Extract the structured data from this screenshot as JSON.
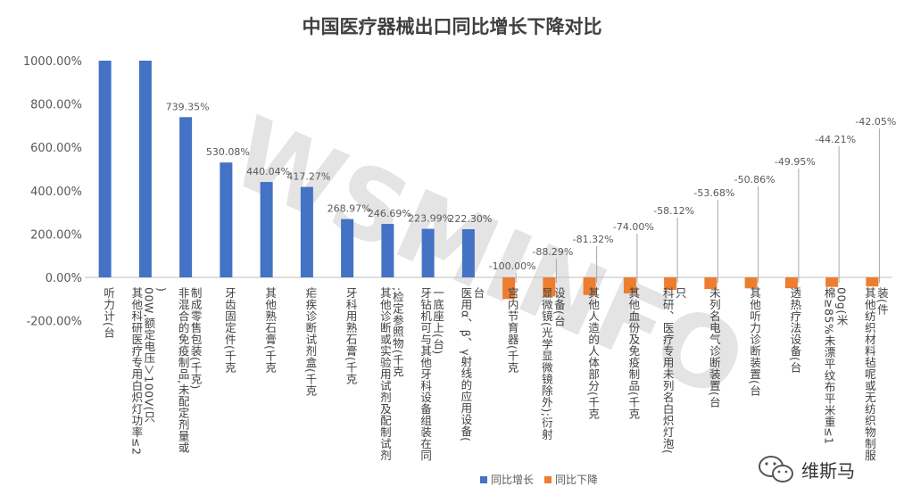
{
  "chart_data": {
    "type": "bar",
    "title": "中国医疗器械出口同比增长下降对比",
    "xlabel": "",
    "ylabel": "",
    "ylim": [
      -200,
      1000
    ],
    "yticks": [
      "1000.00%",
      "800.00%",
      "600.00%",
      "400.00%",
      "200.00%",
      "0.00%",
      "-200.00%"
    ],
    "grid": false,
    "legend_position": "bottom",
    "categories": [
      "听力计(台",
      "其他科研医疗专用白炽灯功率≤200W,额定电压＞100V(只)",
      "非混合的免疫制品,未配定剂量或制成零售包装(千克)",
      "牙齿固定件(千克",
      "其他熟石膏(千克",
      "疟疾诊断试剂盒(千克",
      "牙科用熟石膏(千克",
      "其他诊断或实验用试剂及配制试剂;检定参照物(千克",
      "牙钻机可与其他牙科设备组装在同一底座上(台)",
      "医用α、β、γ射线的应用设备(台",
      "宫内节育器(千克",
      "显微镜(光学显微镜除外);衍射设备(台",
      "其他人造的人体部分(千克",
      "其他血份及免疫制品(千克",
      "科研、医疗专用未列名白炽灯泡(只",
      "未列名电气诊断装置(台",
      "其他听力诊断装置(台",
      "透热疗法设备(台",
      "棉≥85%未漂平纹布平米重≤100g(米",
      "其他纺织材料毡呢或无纺织物制服装(件"
    ],
    "series": [
      {
        "name": "同比增长",
        "color": "#4472C4",
        "values": [
          1000,
          1000,
          739.35,
          530.08,
          440.04,
          417.27,
          268.97,
          246.69,
          223.99,
          222.3,
          null,
          null,
          null,
          null,
          null,
          null,
          null,
          null,
          null,
          null
        ],
        "labels": [
          "",
          "",
          "739.35%",
          "530.08%",
          "440.04%",
          "417.27%",
          "268.97%",
          "246.69%",
          "223.99%",
          "222.30%",
          "",
          "",
          "",
          "",
          "",
          "",
          "",
          "",
          "",
          ""
        ]
      },
      {
        "name": "同比下降",
        "color": "#ED7D31",
        "values": [
          null,
          null,
          null,
          null,
          null,
          null,
          null,
          null,
          null,
          null,
          -100,
          -88.29,
          -81.32,
          -74,
          -58.12,
          -53.68,
          -50.86,
          -49.95,
          -44.21,
          -42.05
        ],
        "labels": [
          "",
          "",
          "",
          "",
          "",
          "",
          "",
          "",
          "",
          "",
          "-100.00%",
          "-88.29%",
          "-81.32%",
          "-74.00%",
          "-58.12%",
          "-53.68%",
          "-50.86%",
          "-49.95%",
          "-44.21%",
          "-42.05%"
        ]
      }
    ]
  },
  "watermark": {
    "background_text": "WSMINFO",
    "logo_text": "维斯马",
    "logo_icon": "wechat-icon"
  }
}
